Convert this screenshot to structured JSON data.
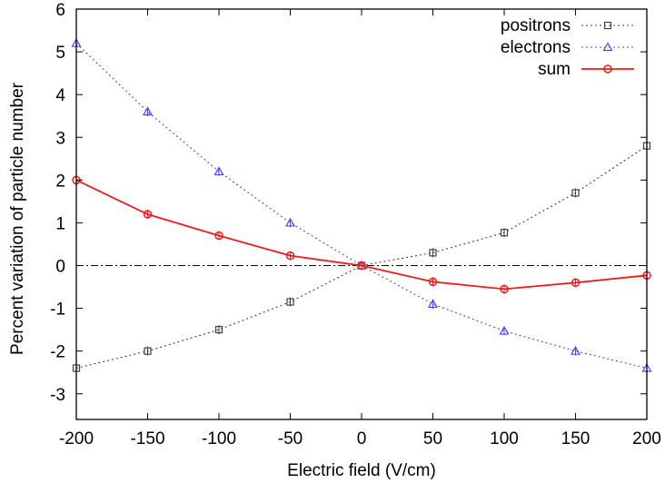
{
  "chart_data": {
    "type": "line",
    "xlabel": "Electric field (V/cm)",
    "ylabel": "Percent variation of particle number",
    "xlim": [
      -200,
      200
    ],
    "ylim": [
      -3.6,
      6
    ],
    "xticks": [
      -200,
      -150,
      -100,
      -50,
      0,
      50,
      100,
      150,
      200
    ],
    "yticks": [
      -3,
      -2,
      -1,
      0,
      1,
      2,
      3,
      4,
      5,
      6
    ],
    "x": [
      -200,
      -150,
      -100,
      -50,
      0,
      50,
      100,
      150,
      200
    ],
    "zero_line": {
      "y": 0,
      "style": "dash-dot",
      "color": "#000000"
    },
    "legend_position": "top-right",
    "series": [
      {
        "name": "positrons",
        "values": [
          -2.4,
          -2.0,
          -1.5,
          -0.85,
          0.0,
          0.3,
          0.77,
          1.7,
          2.8
        ],
        "color": "#404040",
        "line": "dotted",
        "marker": "square"
      },
      {
        "name": "electrons",
        "values": [
          5.2,
          3.6,
          2.2,
          1.0,
          0.0,
          -0.9,
          -1.53,
          -2.0,
          -2.4
        ],
        "color": "#4a4ae8",
        "line": "dotted",
        "marker": "triangle"
      },
      {
        "name": "sum",
        "values": [
          2.0,
          1.2,
          0.7,
          0.23,
          0.0,
          -0.38,
          -0.55,
          -0.4,
          -0.23
        ],
        "color": "#ee1c1c",
        "line": "solid",
        "marker": "circle"
      }
    ]
  }
}
